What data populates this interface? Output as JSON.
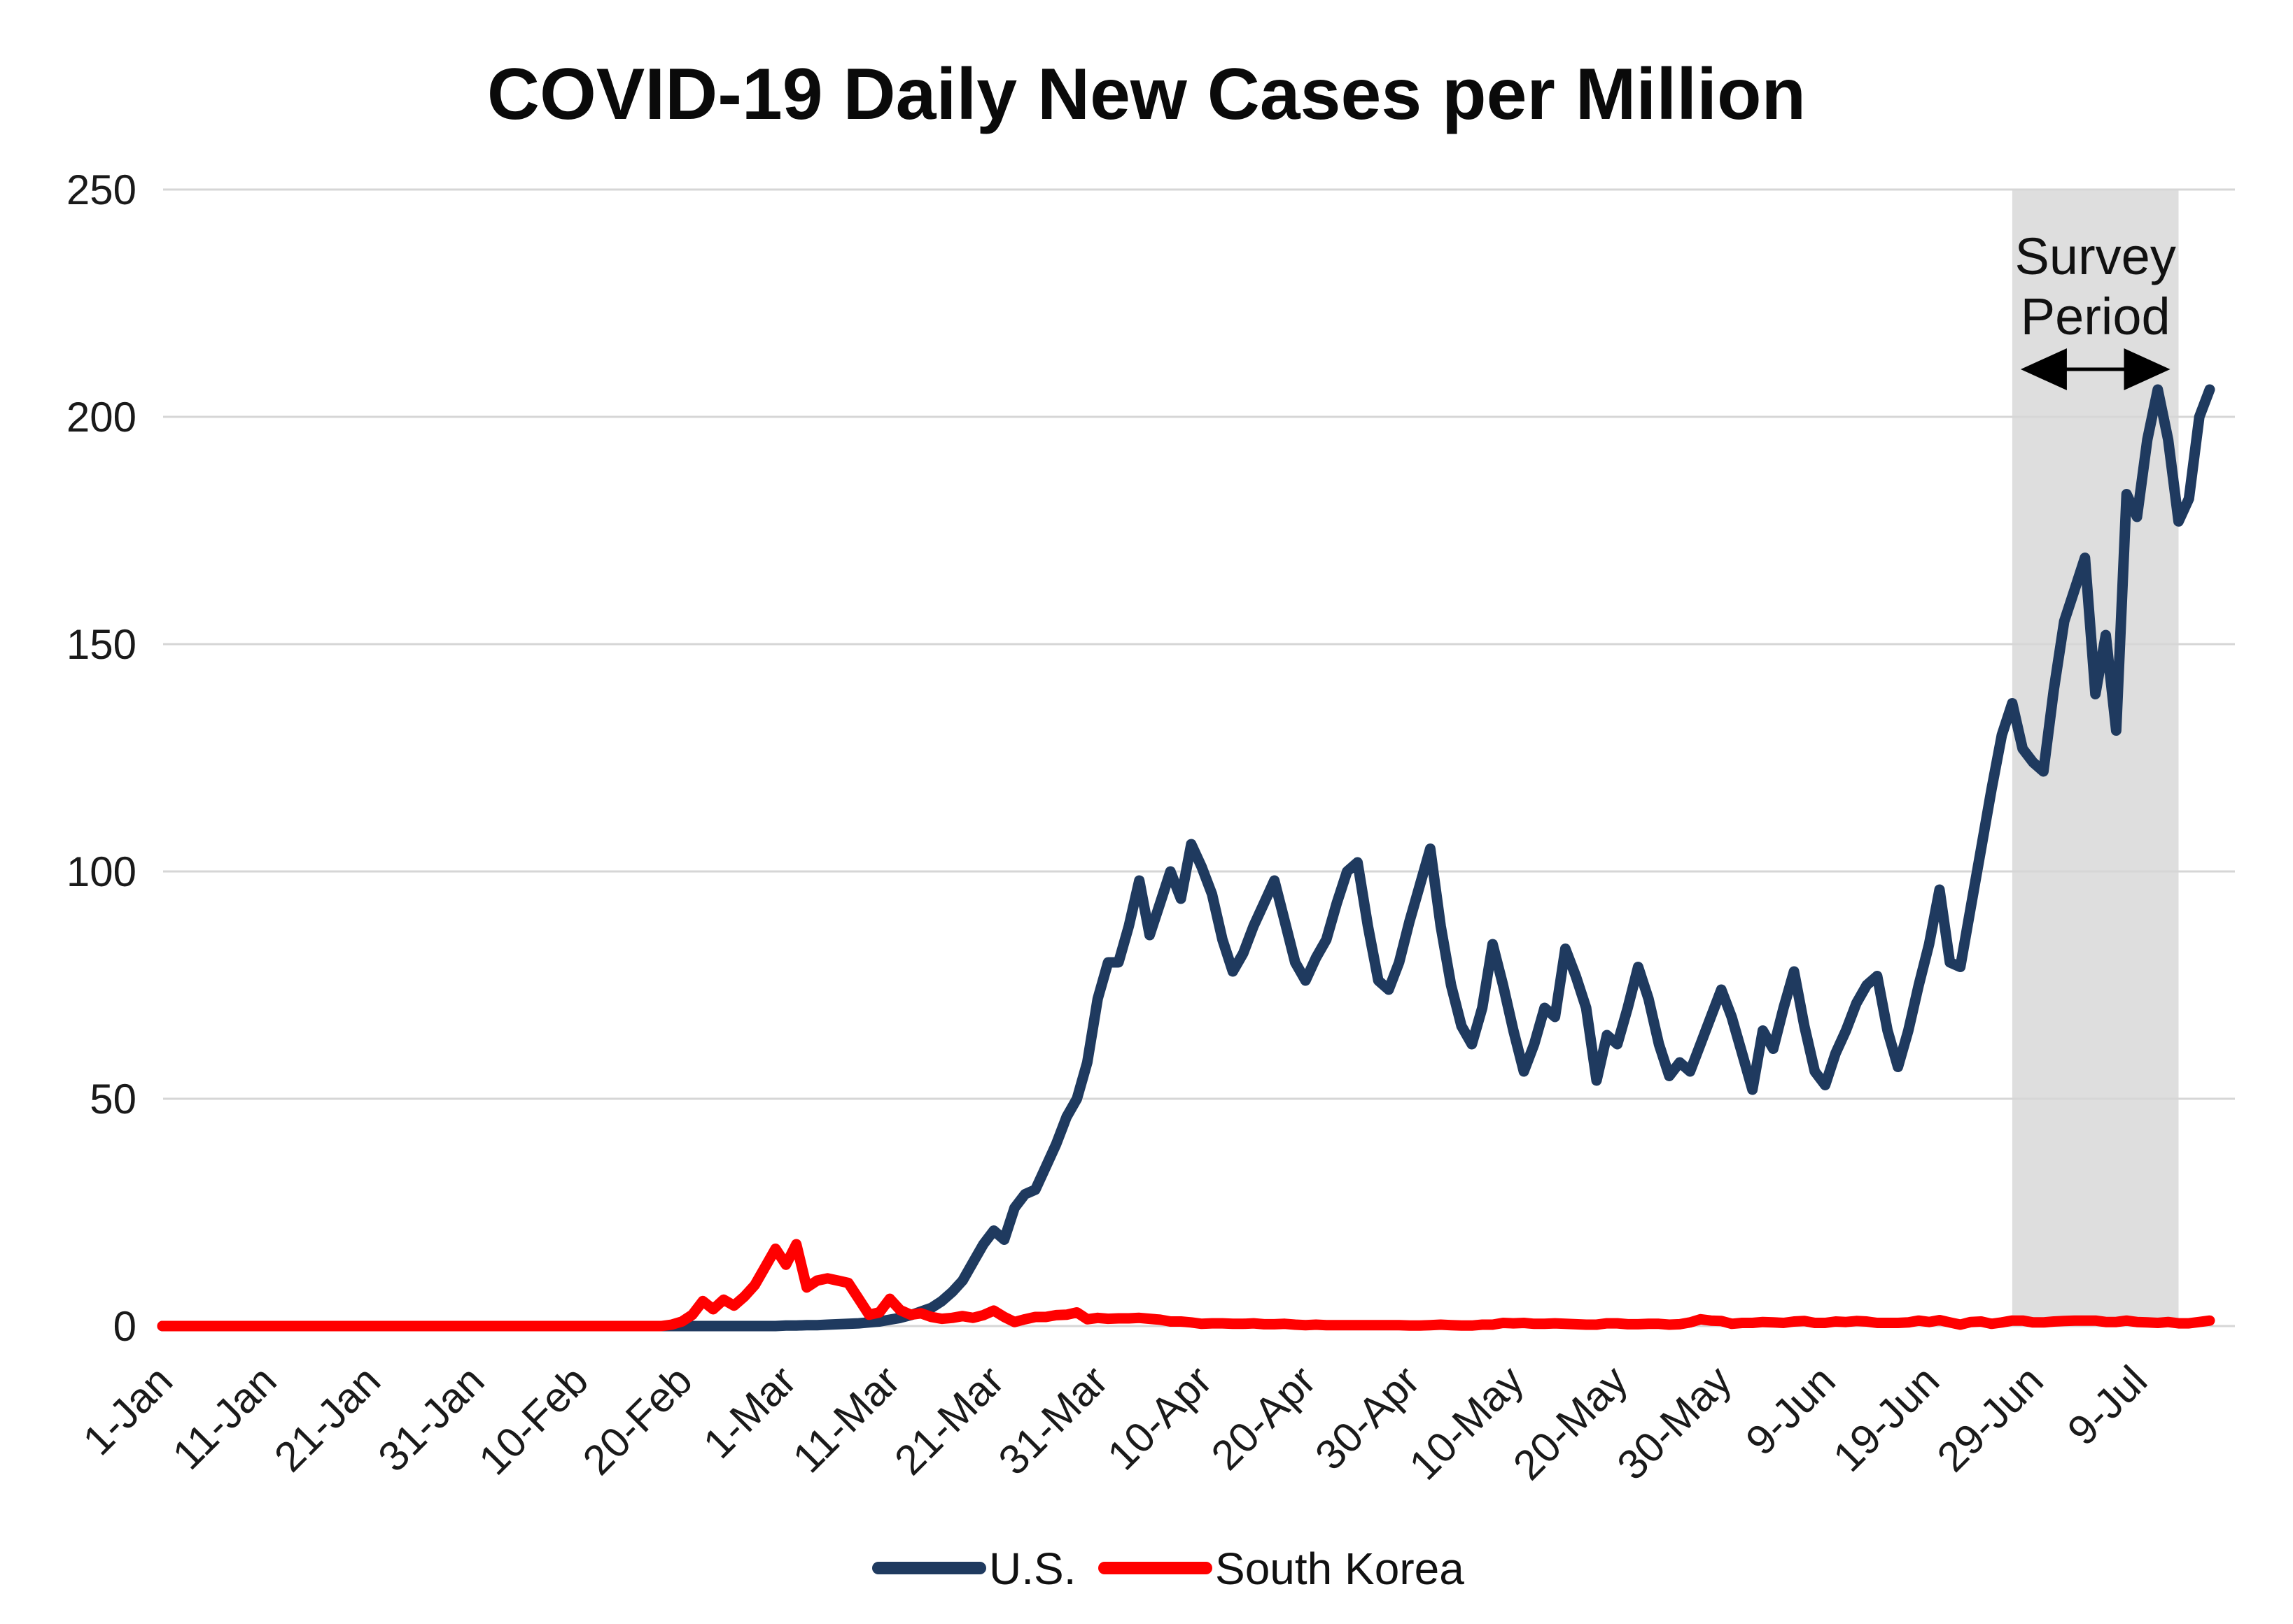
{
  "page": {
    "background": "#FFFFFF"
  },
  "chart_data": {
    "type": "line",
    "title": "COVID-19 Daily New Cases per Million",
    "ylabel": "",
    "xlabel": "",
    "ylim": [
      0,
      250
    ],
    "y_ticks": [
      0,
      50,
      100,
      150,
      200,
      250
    ],
    "grid": "horizontal",
    "grid_color": "#D6D6D6",
    "legend_position": "bottom-center",
    "x_unit": "day",
    "x_ticks": [
      {
        "label": "1-Jan",
        "day_index": 0
      },
      {
        "label": "11-Jan",
        "day_index": 10
      },
      {
        "label": "21-Jan",
        "day_index": 20
      },
      {
        "label": "31-Jan",
        "day_index": 30
      },
      {
        "label": "10-Feb",
        "day_index": 40
      },
      {
        "label": "20-Feb",
        "day_index": 50
      },
      {
        "label": "1-Mar",
        "day_index": 60
      },
      {
        "label": "11-Mar",
        "day_index": 70
      },
      {
        "label": "21-Mar",
        "day_index": 80
      },
      {
        "label": "31-Mar",
        "day_index": 90
      },
      {
        "label": "10-Apr",
        "day_index": 100
      },
      {
        "label": "20-Apr",
        "day_index": 110
      },
      {
        "label": "30-Apr",
        "day_index": 120
      },
      {
        "label": "10-May",
        "day_index": 130
      },
      {
        "label": "20-May",
        "day_index": 140
      },
      {
        "label": "30-May",
        "day_index": 150
      },
      {
        "label": "9-Jun",
        "day_index": 160
      },
      {
        "label": "19-Jun",
        "day_index": 170
      },
      {
        "label": "29-Jun",
        "day_index": 180
      },
      {
        "label": "9-Jul",
        "day_index": 190
      }
    ],
    "annotation": {
      "label_line1": "Survey",
      "label_line2": "Period",
      "arrow": "double-headed",
      "start_day_index": 178,
      "end_day_index": 194,
      "fill": "#DEDEDE"
    },
    "series": [
      {
        "name": "U.S.",
        "color": "#1F3A5F",
        "values": [
          0,
          0,
          0,
          0,
          0,
          0,
          0,
          0,
          0,
          0,
          0,
          0,
          0,
          0,
          0,
          0,
          0,
          0,
          0,
          0,
          0,
          0,
          0,
          0,
          0,
          0,
          0,
          0,
          0,
          0,
          0,
          0,
          0,
          0,
          0,
          0,
          0,
          0,
          0,
          0,
          0,
          0,
          0,
          0,
          0,
          0,
          0,
          0,
          0,
          0,
          0,
          0,
          0,
          0,
          0,
          0,
          0,
          0,
          0,
          0,
          0.1,
          0.1,
          0.2,
          0.2,
          0.3,
          0.4,
          0.5,
          0.6,
          0.8,
          1,
          1.4,
          1.8,
          2.4,
          3.2,
          4,
          5.5,
          7.5,
          10,
          14,
          18,
          21,
          19,
          26,
          29,
          30,
          35,
          40,
          46,
          50,
          58,
          72,
          80,
          80,
          88,
          98,
          86,
          93,
          100,
          94,
          106,
          101,
          95,
          85,
          78,
          82,
          88,
          93,
          98,
          89,
          80,
          76,
          81,
          85,
          93,
          100,
          102,
          88,
          76,
          74,
          80,
          89,
          97,
          105,
          88,
          75,
          66,
          62,
          70,
          84,
          75,
          65,
          56,
          62,
          70,
          68,
          83,
          77,
          70,
          54,
          64,
          62,
          70,
          79,
          72,
          62,
          55,
          58,
          56,
          62,
          68,
          74,
          68,
          60,
          52,
          65,
          61,
          70,
          78,
          66,
          56,
          53,
          60,
          65,
          71,
          75,
          77,
          65,
          57,
          65,
          75,
          84,
          96,
          80,
          79,
          92,
          105,
          118,
          130,
          137,
          127,
          124,
          122,
          140,
          155,
          162,
          169,
          139,
          152,
          131,
          183,
          178,
          195,
          206,
          195,
          177,
          182,
          200,
          206
        ]
      },
      {
        "name": "South Korea",
        "color": "#FF0000",
        "values": [
          0,
          0,
          0,
          0,
          0,
          0,
          0,
          0,
          0,
          0,
          0,
          0,
          0,
          0,
          0,
          0,
          0,
          0,
          0,
          0,
          0,
          0,
          0,
          0,
          0,
          0,
          0,
          0,
          0,
          0,
          0,
          0,
          0,
          0,
          0,
          0,
          0,
          0,
          0,
          0,
          0,
          0,
          0,
          0,
          0,
          0,
          0,
          0,
          0,
          0.3,
          1,
          2.5,
          5.5,
          3.7,
          5.8,
          4.5,
          6.5,
          9,
          13,
          17,
          13.5,
          18,
          8.5,
          10,
          10.5,
          10,
          9.5,
          6,
          2.5,
          3,
          6,
          3.5,
          2.5,
          2.8,
          2,
          1.6,
          1.8,
          2.2,
          1.8,
          2.4,
          3.4,
          2,
          0.9,
          1.5,
          2,
          2,
          2.4,
          2.5,
          3,
          1.5,
          1.8,
          1.6,
          1.7,
          1.7,
          1.8,
          1.6,
          1.4,
          1,
          1,
          0.8,
          0.5,
          0.6,
          0.6,
          0.5,
          0.5,
          0.6,
          0.4,
          0.4,
          0.5,
          0.3,
          0.2,
          0.3,
          0.2,
          0.2,
          0.2,
          0.2,
          0.2,
          0.2,
          0.2,
          0.2,
          0.1,
          0.1,
          0.2,
          0.3,
          0.2,
          0.1,
          0.1,
          0.3,
          0.3,
          0.7,
          0.6,
          0.7,
          0.5,
          0.5,
          0.6,
          0.5,
          0.4,
          0.3,
          0.3,
          0.6,
          0.6,
          0.4,
          0.4,
          0.5,
          0.5,
          0.3,
          0.4,
          0.8,
          1.5,
          1.2,
          1.1,
          0.5,
          0.7,
          0.7,
          0.9,
          0.8,
          0.7,
          1,
          1.1,
          0.7,
          0.7,
          1,
          0.9,
          1.1,
          1,
          0.7,
          0.7,
          0.7,
          0.8,
          1.2,
          0.9,
          1.3,
          0.8,
          0.3,
          0.9,
          1,
          0.5,
          0.8,
          1.2,
          1.2,
          0.8,
          0.8,
          1,
          1.1,
          1.2,
          1.2,
          1.2,
          0.9,
          0.9,
          1.2,
          0.9,
          0.8,
          0.7,
          0.9,
          0.6,
          0.6,
          0.9,
          1.2
        ]
      }
    ]
  }
}
